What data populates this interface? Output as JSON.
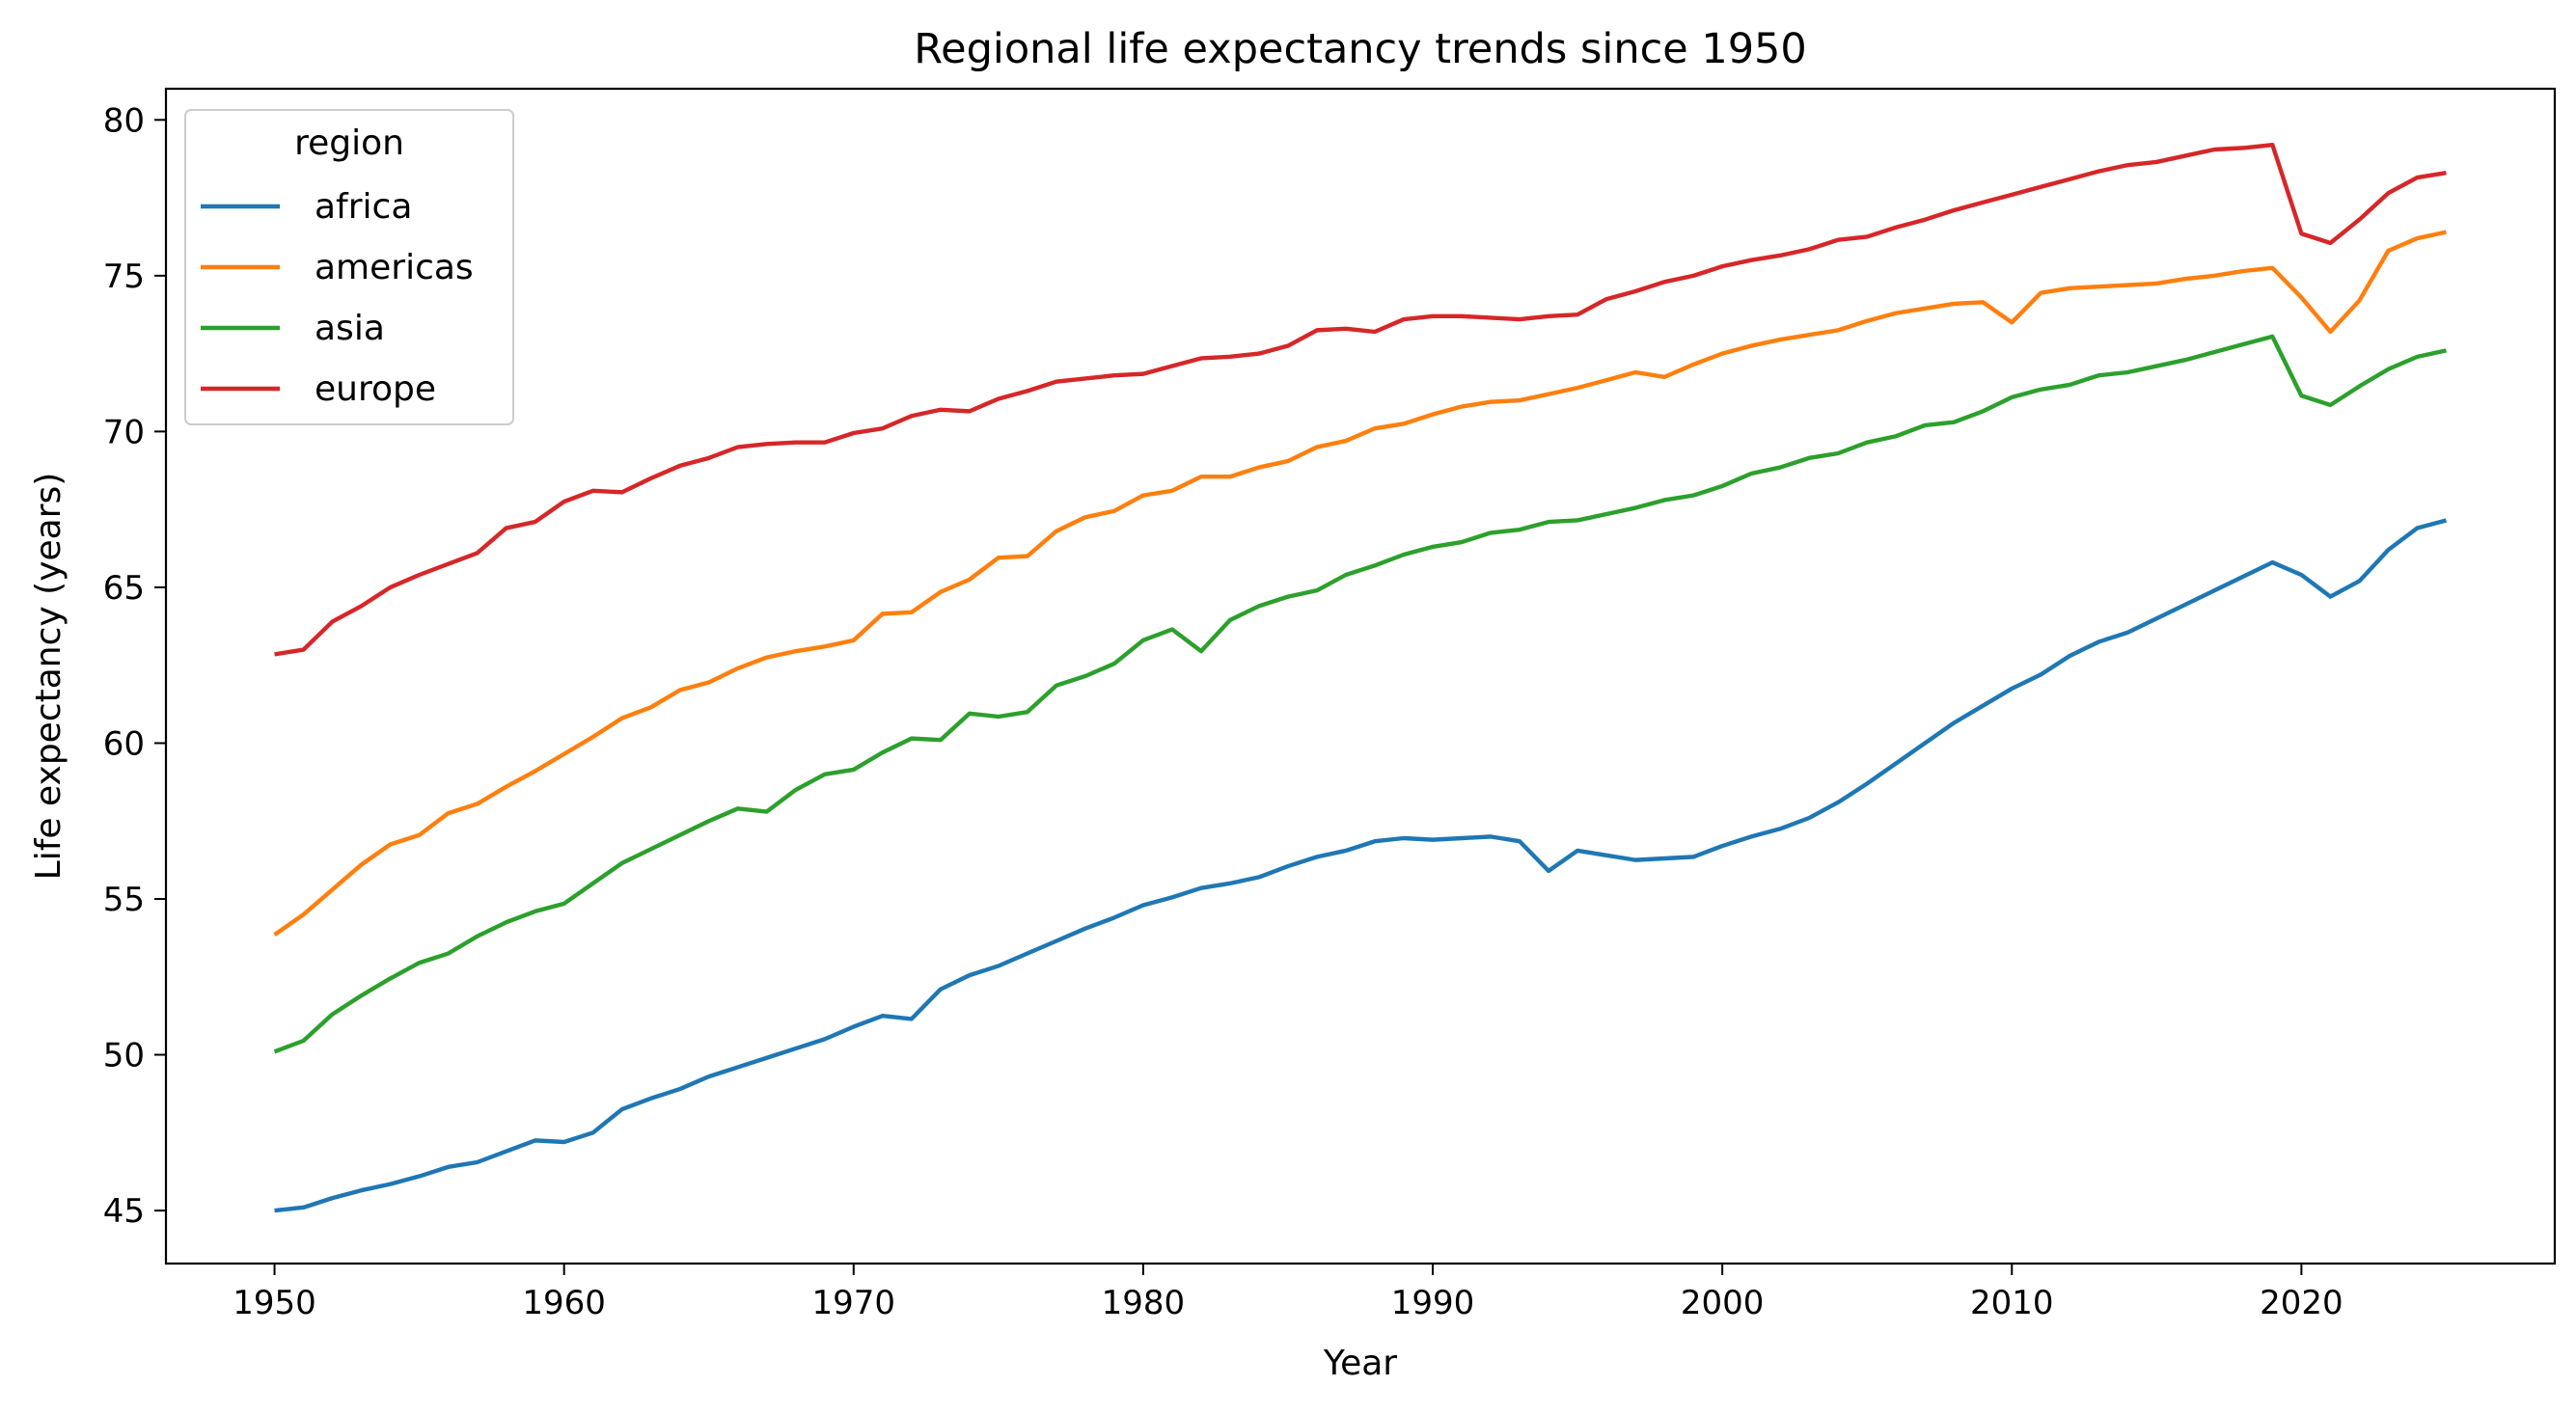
{
  "chart_data": {
    "type": "line",
    "title": "Regional life expectancy trends since 1950",
    "xlabel": "Year",
    "ylabel": "Life expectancy (years)",
    "xlim": [
      1946.25,
      2028.75
    ],
    "ylim": [
      43.3,
      81.0
    ],
    "xticks": [
      1950,
      1960,
      1970,
      1980,
      1990,
      2000,
      2010,
      2020
    ],
    "yticks": [
      45,
      50,
      55,
      60,
      65,
      70,
      75,
      80
    ],
    "grid": false,
    "legend": {
      "title": "region",
      "position": "top-left"
    },
    "x_start": 1950,
    "x_end": 2025,
    "series": [
      {
        "name": "africa",
        "color": "#1f77b4",
        "values": [
          45.0,
          45.1,
          45.4,
          45.65,
          45.85,
          46.1,
          46.4,
          46.55,
          46.9,
          47.25,
          47.2,
          47.5,
          48.25,
          48.6,
          48.9,
          49.3,
          49.6,
          49.9,
          50.2,
          50.5,
          50.9,
          51.25,
          51.15,
          52.1,
          52.55,
          52.85,
          53.25,
          53.65,
          54.05,
          54.4,
          54.8,
          55.05,
          55.35,
          55.5,
          55.7,
          56.05,
          56.35,
          56.55,
          56.85,
          56.95,
          56.9,
          56.95,
          57.0,
          56.85,
          55.9,
          56.55,
          56.4,
          56.25,
          56.3,
          56.35,
          56.7,
          57.0,
          57.25,
          57.6,
          58.1,
          58.7,
          59.35,
          60.0,
          60.65,
          61.2,
          61.75,
          62.2,
          62.8,
          63.25,
          63.55,
          64.0,
          64.45,
          64.9,
          65.35,
          65.8,
          65.4,
          64.7,
          65.2,
          66.2,
          66.9,
          67.15
        ]
      },
      {
        "name": "americas",
        "color": "#ff7f0e",
        "values": [
          53.85,
          54.5,
          55.3,
          56.1,
          56.75,
          57.05,
          57.75,
          58.05,
          58.6,
          59.1,
          59.65,
          60.2,
          60.8,
          61.15,
          61.7,
          61.95,
          62.4,
          62.75,
          62.95,
          63.1,
          63.3,
          64.15,
          64.2,
          64.85,
          65.25,
          65.95,
          66.0,
          66.8,
          67.25,
          67.45,
          67.95,
          68.1,
          68.55,
          68.55,
          68.85,
          69.05,
          69.5,
          69.7,
          70.1,
          70.25,
          70.55,
          70.8,
          70.95,
          71.0,
          71.2,
          71.4,
          71.65,
          71.9,
          71.75,
          72.15,
          72.5,
          72.75,
          72.95,
          73.1,
          73.25,
          73.55,
          73.8,
          73.95,
          74.1,
          74.15,
          73.5,
          74.45,
          74.6,
          74.65,
          74.7,
          74.75,
          74.9,
          75.0,
          75.15,
          75.25,
          74.3,
          73.2,
          74.2,
          75.8,
          76.2,
          76.4
        ]
      },
      {
        "name": "asia",
        "color": "#2ca02c",
        "values": [
          50.1,
          50.45,
          51.3,
          51.9,
          52.45,
          52.95,
          53.25,
          53.8,
          54.25,
          54.6,
          54.85,
          55.5,
          56.15,
          56.6,
          57.05,
          57.5,
          57.9,
          57.8,
          58.5,
          59.0,
          59.15,
          59.7,
          60.15,
          60.1,
          60.95,
          60.85,
          61.0,
          61.85,
          62.15,
          62.55,
          63.3,
          63.65,
          62.95,
          63.95,
          64.4,
          64.7,
          64.9,
          65.4,
          65.7,
          66.05,
          66.3,
          66.45,
          66.75,
          66.85,
          67.1,
          67.15,
          67.35,
          67.55,
          67.8,
          67.95,
          68.25,
          68.65,
          68.85,
          69.15,
          69.3,
          69.65,
          69.85,
          70.2,
          70.3,
          70.65,
          71.1,
          71.35,
          71.5,
          71.8,
          71.9,
          72.1,
          72.3,
          72.55,
          72.8,
          73.05,
          71.15,
          70.85,
          71.45,
          72.0,
          72.4,
          72.6
        ]
      },
      {
        "name": "europe",
        "color": "#d62728",
        "values": [
          62.85,
          63.0,
          63.9,
          64.4,
          65.0,
          65.4,
          65.75,
          66.1,
          66.9,
          67.1,
          67.75,
          68.1,
          68.05,
          68.5,
          68.9,
          69.15,
          69.5,
          69.6,
          69.65,
          69.65,
          69.95,
          70.1,
          70.5,
          70.7,
          70.65,
          71.05,
          71.3,
          71.6,
          71.7,
          71.8,
          71.85,
          72.1,
          72.35,
          72.4,
          72.5,
          72.75,
          73.25,
          73.3,
          73.2,
          73.6,
          73.7,
          73.7,
          73.65,
          73.6,
          73.7,
          73.75,
          74.25,
          74.5,
          74.8,
          75.0,
          75.3,
          75.5,
          75.65,
          75.85,
          76.15,
          76.25,
          76.55,
          76.8,
          77.1,
          77.35,
          77.6,
          77.85,
          78.1,
          78.35,
          78.55,
          78.65,
          78.85,
          79.05,
          79.1,
          79.2,
          76.35,
          76.05,
          76.8,
          77.65,
          78.15,
          78.3
        ]
      }
    ]
  }
}
